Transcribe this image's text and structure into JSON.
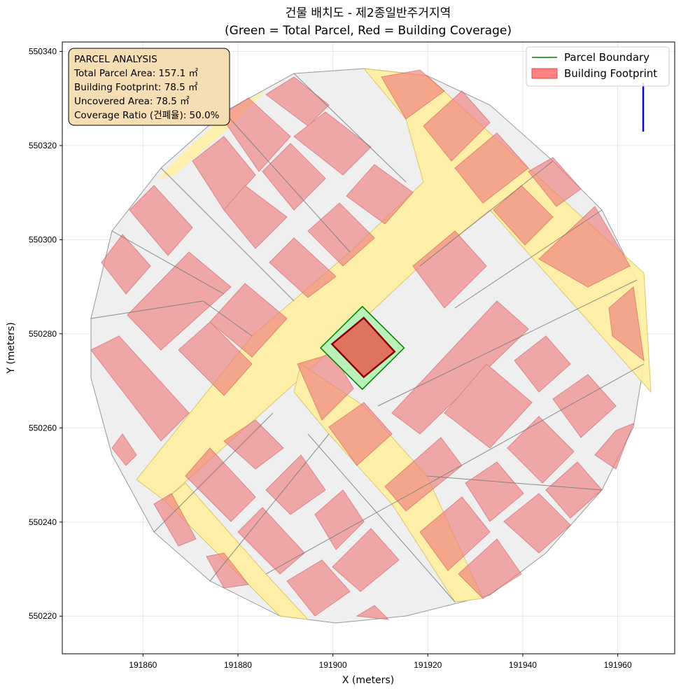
{
  "title_line1": "건물 배치도 - 제2종일반주거지역",
  "title_line2": "(Green = Total Parcel, Red = Building Coverage)",
  "info_box": {
    "lines": [
      "PARCEL ANALYSIS",
      "Total Parcel Area: 157.1 ㎡",
      "Building Footprint: 78.5 ㎡",
      "Uncovered Area: 78.5 ㎡",
      "Coverage Ratio (건폐율): 50.0%"
    ]
  },
  "legend": {
    "parcel_label": "Parcel Boundary",
    "building_label": "Building Footprint"
  },
  "colors": {
    "parcel_edge": "#008000",
    "parcel_fill": "#b9f2b9",
    "building_fill": "#e0735f",
    "building_edge": "#8b0000",
    "context_building": "#f08080",
    "road": "#fff0a0",
    "block": "#efefef",
    "north_arrow": "#0000ff"
  },
  "chart_data": {
    "type": "map",
    "xlabel": "X (meters)",
    "ylabel": "Y (meters)",
    "xlim": [
      191843,
      191972
    ],
    "ylim": [
      550212,
      550342
    ],
    "xticks": [
      191860,
      191880,
      191900,
      191920,
      191940,
      191960
    ],
    "yticks": [
      550220,
      550240,
      550260,
      550280,
      550300,
      550320,
      550340
    ],
    "grid": true,
    "legend_position": "top-right",
    "parcel_polygon": [
      [
        191906.2,
        550285.8
      ],
      [
        191915.0,
        550277.0
      ],
      [
        191906.2,
        550268.2
      ],
      [
        191897.4,
        550277.0
      ]
    ],
    "building_polygon": [
      [
        191906.5,
        550283.4
      ],
      [
        191913.0,
        550276.2
      ],
      [
        191906.5,
        550270.8
      ],
      [
        191899.8,
        550277.8
      ]
    ],
    "parcel_area_m2": 157.1,
    "building_area_m2": 78.5,
    "uncovered_area_m2": 78.5,
    "coverage_ratio_pct": 50.0
  }
}
